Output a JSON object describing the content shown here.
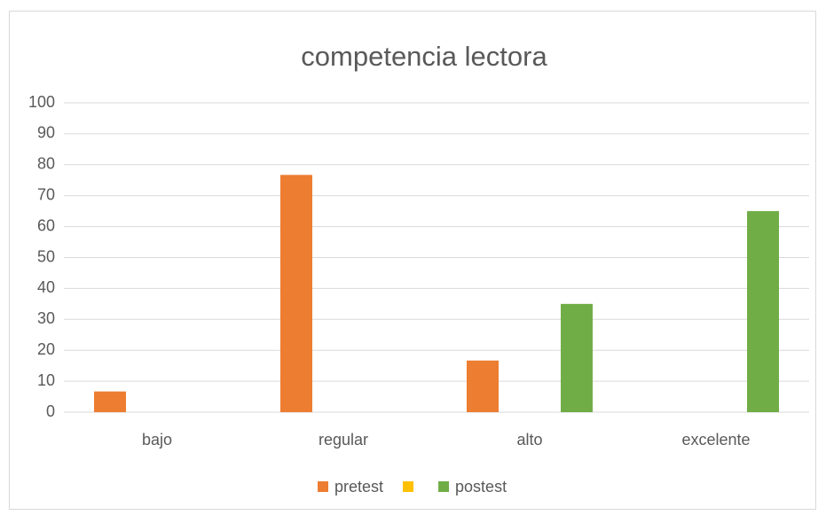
{
  "chart_data": {
    "type": "bar",
    "title": "competencia lectora",
    "categories": [
      "bajo",
      "regular",
      "alto",
      "excelente"
    ],
    "series": [
      {
        "name": "pretest",
        "color": "#ed7d31",
        "values": [
          6.7,
          76.7,
          16.7,
          0
        ]
      },
      {
        "color": "#ffc000",
        "values": [
          0,
          0,
          0,
          0
        ]
      },
      {
        "name": "postest",
        "color": "#70ad47",
        "values": [
          0,
          0,
          35,
          65
        ]
      }
    ],
    "ylim": [
      0,
      100
    ],
    "yticks": [
      0,
      10,
      20,
      30,
      40,
      50,
      60,
      70,
      80,
      90,
      100
    ],
    "grid": true,
    "legend": "bottom"
  }
}
